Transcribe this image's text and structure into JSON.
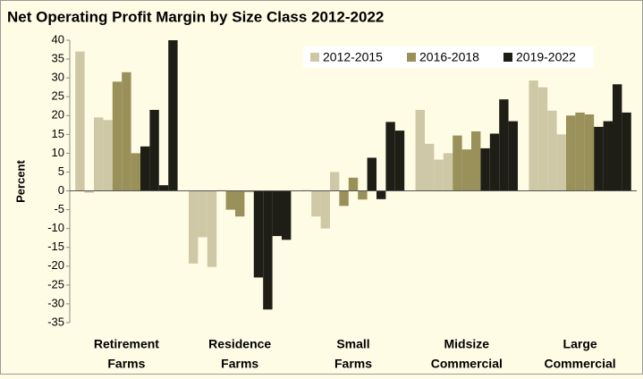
{
  "chart_data": {
    "type": "bar",
    "title": "Net Operating Profit Margin by Size Class 2012-2022",
    "y_label": "Percent",
    "categories": [
      [
        "Retirement",
        "Farms"
      ],
      [
        "Residence",
        "Farms"
      ],
      [
        "Small",
        "Farms"
      ],
      [
        "Midsize",
        "Commercial"
      ],
      [
        "Large",
        "Commercial"
      ]
    ],
    "series": [
      {
        "name": "2012-2015",
        "color": "#cfc8a6",
        "values": [
          [
            37,
            -0.5,
            19.5,
            18.8
          ],
          [
            -19.3,
            -12.3,
            -20.2,
            0.2
          ],
          [
            0.2,
            -6.8,
            -10,
            5
          ],
          [
            21.5,
            12.5,
            8.3,
            10
          ],
          [
            29.3,
            27.5,
            21.3,
            15
          ]
        ]
      },
      {
        "name": "2016-2018",
        "color": "#99905a",
        "values": [
          [
            29,
            31.5,
            10
          ],
          [
            -5,
            -6.8,
            -0.3
          ],
          [
            -4,
            3.5,
            -2.3
          ],
          [
            14.7,
            11,
            15.8
          ],
          [
            20,
            20.8,
            20.3
          ]
        ]
      },
      {
        "name": "2019-2022",
        "color": "#1e1e16",
        "values": [
          [
            11.8,
            21.5,
            1.5,
            40
          ],
          [
            -23,
            -31.5,
            -12,
            -13
          ],
          [
            8.8,
            -2.2,
            18.3,
            16
          ],
          [
            11.3,
            15.2,
            24.3,
            18.5
          ],
          [
            17,
            18.5,
            28.3,
            20.8
          ]
        ]
      }
    ],
    "ylim": [
      -35,
      40
    ],
    "yticks": [
      -35,
      -30,
      -25,
      -20,
      -15,
      -10,
      -5,
      0,
      5,
      10,
      15,
      20,
      25,
      30,
      35,
      40
    ],
    "legend": "top-right",
    "grid": false
  }
}
